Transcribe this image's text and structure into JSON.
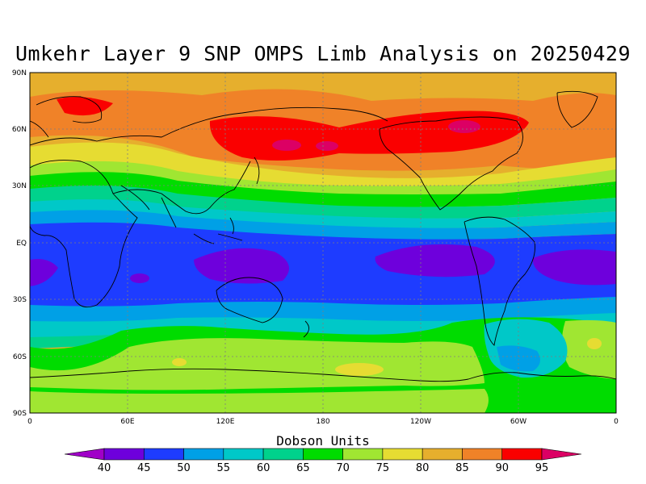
{
  "title": "Umkehr Layer 9 SNP OMPS Limb Analysis on 20250429",
  "lat_labels": [
    "90N",
    "60N",
    "30N",
    "EQ",
    "30S",
    "60S",
    "90S"
  ],
  "lon_labels": [
    "0",
    "60E",
    "120E",
    "180",
    "120W",
    "60W",
    "0"
  ],
  "colorbar": {
    "title": "Dobson Units",
    "levels": [
      "40",
      "45",
      "50",
      "55",
      "60",
      "65",
      "70",
      "75",
      "80",
      "85",
      "90",
      "95"
    ],
    "colors": [
      "#a000c8",
      "#6e00dc",
      "#1e3cff",
      "#00a0e6",
      "#00c8c8",
      "#00d28c",
      "#00dc00",
      "#a0e632",
      "#e6dc32",
      "#e6af2d",
      "#f08228",
      "#fa0000",
      "#dc0064"
    ]
  }
}
